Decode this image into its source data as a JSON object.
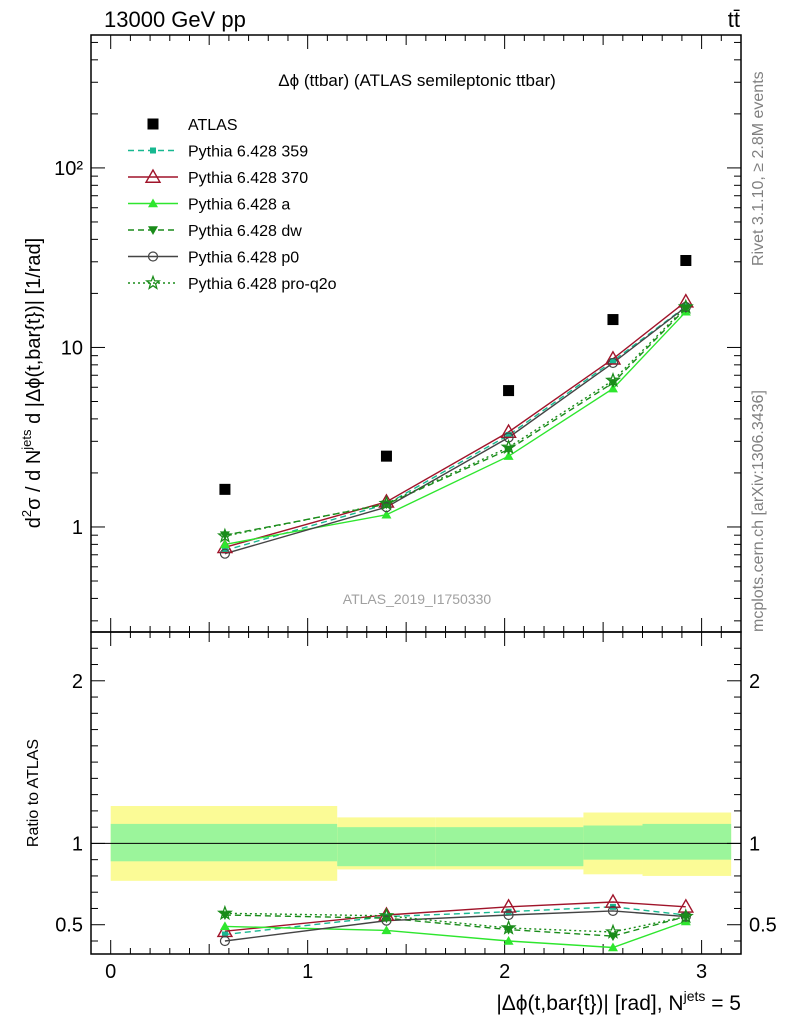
{
  "header": {
    "energy": "13000 GeV pp",
    "process": "tt̄"
  },
  "side_labels": {
    "rivet": "Rivet 3.1.10, ≥ 2.8M events",
    "source": "mcplots.cern.ch [arXiv:1306.3436]"
  },
  "chart_data": [
    {
      "type": "line",
      "title": "Δϕ (ttbar) (ATLAS semileptonic ttbar)",
      "watermark": "ATLAS_2019_I1750330",
      "ylabel": "d²σ / d Nʲᵉᵗˢ d |Δϕ(t,bar{t})| [1/rad]",
      "ylabel_parts": {
        "pre": "d",
        "sup1": "2",
        "mid": "σ / d N",
        "sup2": "jets",
        "post": " d |Δϕ(t,bar{t})| [1/rad]"
      },
      "yscale": "log",
      "ylim": [
        0.26,
        550
      ],
      "xlim": [
        -0.1,
        3.2
      ],
      "yticks": [
        1,
        10,
        100
      ],
      "yticklabels": [
        "1",
        "10",
        "10²"
      ],
      "legend_position": "top-left",
      "x": [
        0.58,
        1.4,
        2.02,
        2.55,
        2.92
      ],
      "series": [
        {
          "name": "ATLAS",
          "color": "#000000",
          "marker": "square",
          "line": "none",
          "values": [
            1.62,
            2.48,
            5.75,
            14.3,
            30.5
          ]
        },
        {
          "name": "Pythia 6.428 359",
          "color": "#17b890",
          "marker": "small-square",
          "line": "dashed",
          "values": [
            0.74,
            1.34,
            3.25,
            8.4,
            16.9
          ]
        },
        {
          "name": "Pythia 6.428 370",
          "color": "#a0142a",
          "marker": "open-triangle",
          "line": "solid",
          "values": [
            0.77,
            1.38,
            3.38,
            8.65,
            18.0
          ]
        },
        {
          "name": "Pythia 6.428 a",
          "color": "#2ee62e",
          "marker": "filled-triangle",
          "line": "solid",
          "values": [
            0.8,
            1.17,
            2.48,
            5.9,
            15.8
          ]
        },
        {
          "name": "Pythia 6.428 dw",
          "color": "#1a8c1a",
          "marker": "filled-triangle-down",
          "line": "dashed",
          "values": [
            0.9,
            1.34,
            2.7,
            6.35,
            16.5
          ]
        },
        {
          "name": "Pythia 6.428 p0",
          "color": "#444444",
          "marker": "open-circle",
          "line": "solid",
          "values": [
            0.71,
            1.29,
            3.15,
            8.2,
            16.8
          ]
        },
        {
          "name": "Pythia 6.428 pro-q2o",
          "color": "#1a8c1a",
          "marker": "star",
          "line": "dotted",
          "values": [
            0.89,
            1.35,
            2.78,
            6.55,
            16.8
          ]
        }
      ]
    },
    {
      "type": "line",
      "ylabel": "Ratio to ATLAS",
      "xlabel": "|Δϕ(t,bar{t})| [rad], Nʲᵉᵗˢ = 5",
      "xlabel_parts": {
        "pre": "|Δϕ(t,bar{t})| [rad], N",
        "sup": "jets",
        "post": " = 5"
      },
      "xlim": [
        -0.1,
        3.2
      ],
      "ylim": [
        0.32,
        2.3
      ],
      "xticks": [
        0,
        1,
        2,
        3
      ],
      "yticks": [
        0.5,
        1,
        2
      ],
      "yticklabels": [
        "0.5",
        "1",
        "2"
      ],
      "bands": [
        {
          "x0": 0.0,
          "x1": 1.15,
          "inner": [
            0.89,
            1.12
          ],
          "outer": [
            0.77,
            1.23
          ]
        },
        {
          "x0": 1.15,
          "x1": 1.65,
          "inner": [
            0.86,
            1.1
          ],
          "outer": [
            0.84,
            1.16
          ]
        },
        {
          "x0": 1.65,
          "x1": 2.4,
          "inner": [
            0.86,
            1.1
          ],
          "outer": [
            0.84,
            1.16
          ]
        },
        {
          "x0": 2.4,
          "x1": 2.7,
          "inner": [
            0.9,
            1.11
          ],
          "outer": [
            0.81,
            1.19
          ]
        },
        {
          "x0": 2.7,
          "x1": 3.15,
          "inner": [
            0.9,
            1.12
          ],
          "outer": [
            0.8,
            1.19
          ]
        }
      ],
      "band_colors": {
        "outer": "#fbfb96",
        "inner": "#9bf59b"
      },
      "series": [
        {
          "name": "Pythia 6.428 359",
          "values": [
            0.44,
            0.55,
            0.58,
            0.61,
            0.56
          ]
        },
        {
          "name": "Pythia 6.428 370",
          "values": [
            0.46,
            0.56,
            0.61,
            0.64,
            0.61
          ]
        },
        {
          "name": "Pythia 6.428 a",
          "values": [
            0.49,
            0.465,
            0.4,
            0.36,
            0.52
          ]
        },
        {
          "name": "Pythia 6.428 dw",
          "values": [
            0.56,
            0.54,
            0.47,
            0.43,
            0.55
          ]
        },
        {
          "name": "Pythia 6.428 p0",
          "values": [
            0.4,
            0.525,
            0.56,
            0.585,
            0.55
          ]
        },
        {
          "name": "Pythia 6.428 pro-q2o",
          "values": [
            0.57,
            0.555,
            0.48,
            0.455,
            0.55
          ]
        }
      ]
    }
  ]
}
